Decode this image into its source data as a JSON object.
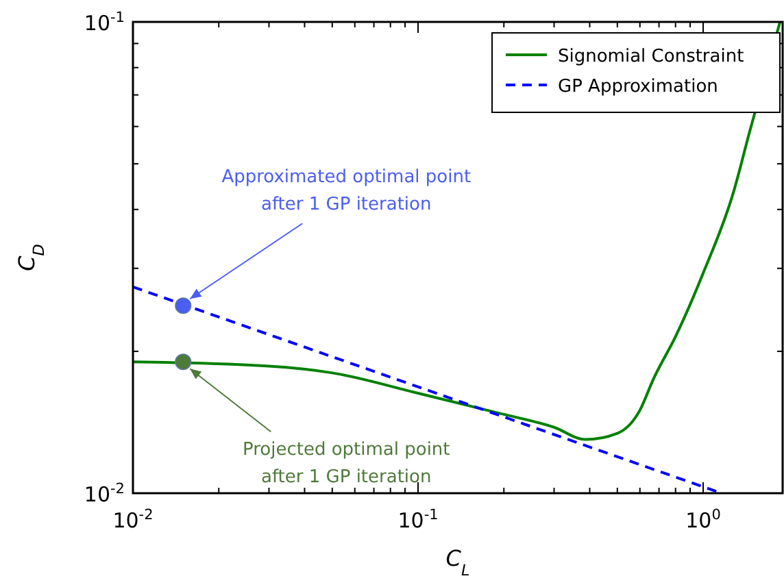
{
  "chart_data": {
    "type": "line",
    "xlabel": "C$_{L}$",
    "ylabel": "C$_{D}$",
    "log": "xy",
    "legend": "top right",
    "grid": false,
    "xlim": [
      0.01,
      1.9
    ],
    "ylim": [
      0.01,
      0.1
    ],
    "xticks": [
      {
        "value": 0.01,
        "label": "10$^{-2}$"
      },
      {
        "value": 0.02,
        "label": null
      },
      {
        "value": 0.03,
        "label": null
      },
      {
        "value": 0.04,
        "label": null
      },
      {
        "value": 0.05,
        "label": null
      },
      {
        "value": 0.06,
        "label": null
      },
      {
        "value": 0.07,
        "label": null
      },
      {
        "value": 0.08,
        "label": null
      },
      {
        "value": 0.09,
        "label": null
      },
      {
        "value": 0.1,
        "label": "10$^{-1}$"
      },
      {
        "value": 0.2,
        "label": null
      },
      {
        "value": 0.3,
        "label": null
      },
      {
        "value": 0.4,
        "label": null
      },
      {
        "value": 0.5,
        "label": null
      },
      {
        "value": 0.6,
        "label": null
      },
      {
        "value": 0.7,
        "label": null
      },
      {
        "value": 0.8,
        "label": null
      },
      {
        "value": 0.9,
        "label": null
      },
      {
        "value": 1,
        "label": "10$^{0}$"
      }
    ],
    "yticks": [
      {
        "value": 0.01,
        "label": "10$^{-2}$"
      },
      {
        "value": 0.02,
        "label": null
      },
      {
        "value": 0.03,
        "label": null
      },
      {
        "value": 0.04,
        "label": null
      },
      {
        "value": 0.05,
        "label": null
      },
      {
        "value": 0.06,
        "label": null
      },
      {
        "value": 0.07,
        "label": null
      },
      {
        "value": 0.08,
        "label": null
      },
      {
        "value": 0.09,
        "label": null
      },
      {
        "value": 0.1,
        "label": "10$^{-1}$"
      }
    ],
    "series": [
      {
        "name": "Signomial Constraint",
        "color": "#008000",
        "line_style": "solid",
        "marker": "none",
        "x": [
          0.01,
          0.03,
          0.05,
          0.1,
          0.2,
          0.3,
          0.386,
          0.5,
          0.6,
          0.67,
          0.8,
          1.0,
          1.28,
          1.45,
          1.86
        ],
        "values": [
          0.019,
          0.0186,
          0.018,
          0.0163,
          0.0147,
          0.0138,
          0.013,
          0.0134,
          0.015,
          0.0175,
          0.0215,
          0.0293,
          0.0437,
          0.058,
          0.1
        ]
      },
      {
        "name": "GP Approximation",
        "color": "#0000ff",
        "line_style": "dashed",
        "marker": "none",
        "x": [
          0.01,
          1.16
        ],
        "values": [
          0.0274,
          0.01
        ]
      },
      {
        "type": "scatter",
        "marker": "circle",
        "colors": [
          "#4a5ef0",
          "#4e7a3a"
        ],
        "x": [
          0.015,
          0.015
        ],
        "values": [
          0.025,
          0.019
        ]
      }
    ],
    "annotations": [
      {
        "text": "Approximated optimal point\nafter 1 GP iteration",
        "x": 0.015,
        "y": 0.025
      },
      {
        "text": "Projected optimal point\nafter 1 GP iteration",
        "x": 0.015,
        "y": 0.019
      }
    ]
  }
}
